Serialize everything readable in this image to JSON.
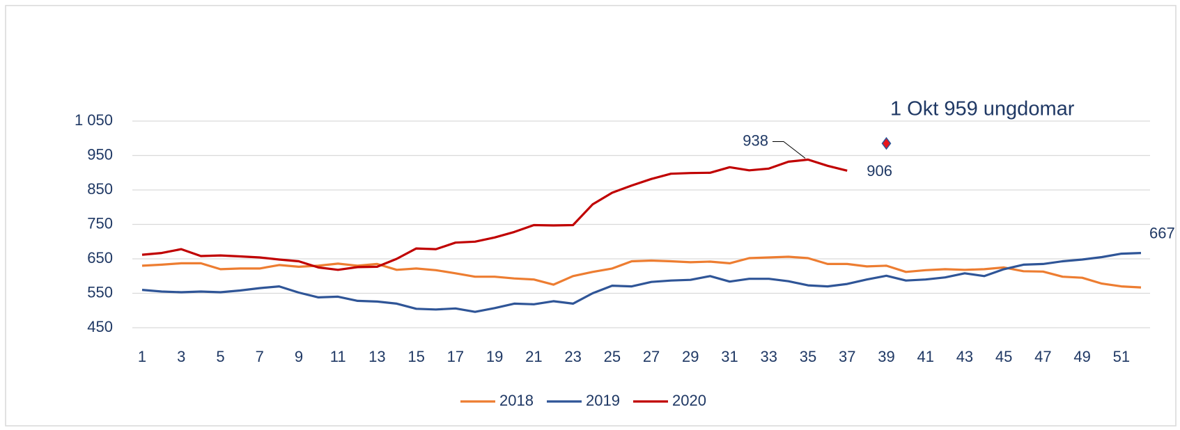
{
  "chart_data": {
    "type": "line",
    "x": [
      1,
      2,
      3,
      4,
      5,
      6,
      7,
      8,
      9,
      10,
      11,
      12,
      13,
      14,
      15,
      16,
      17,
      18,
      19,
      20,
      21,
      22,
      23,
      24,
      25,
      26,
      27,
      28,
      29,
      30,
      31,
      32,
      33,
      34,
      35,
      36,
      37,
      38,
      39,
      40,
      41,
      42,
      43,
      44,
      45,
      46,
      47,
      48,
      49,
      50,
      51,
      52
    ],
    "xlim": [
      1,
      52
    ],
    "xticks": [
      1,
      3,
      5,
      7,
      9,
      11,
      13,
      15,
      17,
      19,
      21,
      23,
      25,
      27,
      29,
      31,
      33,
      35,
      37,
      39,
      41,
      43,
      45,
      47,
      49,
      51
    ],
    "ylim": [
      450,
      1050
    ],
    "yticks": [
      450,
      550,
      650,
      750,
      850,
      950,
      {
        "value": 1050,
        "label": "1 050"
      }
    ],
    "grid": true,
    "legend": "bottom",
    "series": [
      {
        "name": "2018",
        "color": "#ed7d31",
        "values": [
          630,
          633,
          637,
          637,
          620,
          622,
          622,
          632,
          627,
          630,
          636,
          630,
          635,
          618,
          622,
          617,
          608,
          598,
          598,
          593,
          590,
          575,
          600,
          612,
          622,
          643,
          645,
          643,
          640,
          642,
          637,
          652,
          654,
          656,
          652,
          635,
          635,
          628,
          630,
          612,
          617,
          620,
          618,
          620,
          625,
          614,
          613,
          598,
          595,
          578,
          570,
          567
        ]
      },
      {
        "name": "2019",
        "color": "#2f5597",
        "values": [
          560,
          555,
          553,
          555,
          553,
          558,
          565,
          570,
          552,
          538,
          540,
          528,
          526,
          520,
          505,
          503,
          506,
          496,
          507,
          520,
          518,
          527,
          520,
          550,
          572,
          570,
          583,
          587,
          589,
          600,
          584,
          592,
          592,
          585,
          573,
          570,
          577,
          590,
          601,
          587,
          590,
          596,
          608,
          600,
          620,
          633,
          635,
          643,
          648,
          655,
          665,
          667
        ],
        "labeled": [
          51
        ]
      },
      {
        "name": "2020",
        "color": "#c00000",
        "values": [
          662,
          667,
          678,
          658,
          660,
          657,
          654,
          648,
          643,
          625,
          618,
          626,
          627,
          650,
          680,
          678,
          697,
          700,
          712,
          728,
          748,
          747,
          748,
          808,
          842,
          863,
          882,
          897,
          899,
          900,
          916,
          907,
          912,
          932,
          938,
          920,
          906,
          null,
          null,
          null,
          null,
          null,
          null,
          null,
          null,
          null,
          null,
          null,
          null,
          null,
          null,
          null
        ],
        "labeled": [
          34,
          36
        ]
      }
    ],
    "marker": {
      "x": 39,
      "value": 985,
      "color": "#e8151b",
      "edge": "#2f5597"
    },
    "annotation": "1 Okt 959 ungdomar"
  }
}
